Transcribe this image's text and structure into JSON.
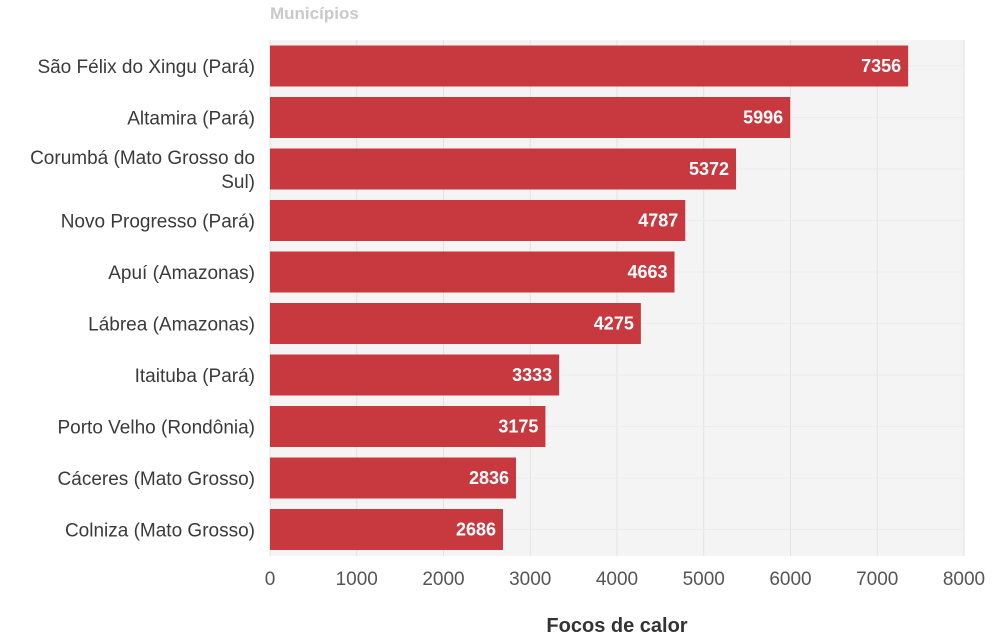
{
  "chart_data": {
    "type": "bar",
    "orientation": "horizontal",
    "title": "Municípios",
    "xlabel": "Focos de calor",
    "ylabel": "",
    "categories": [
      "São Félix do Xingu (Pará)",
      "Altamira (Pará)",
      "Corumbá (Mato Grosso do Sul)",
      "Novo Progresso (Pará)",
      "Apuí (Amazonas)",
      "Lábrea (Amazonas)",
      "Itaituba (Pará)",
      "Porto Velho (Rondônia)",
      "Cáceres (Mato Grosso)",
      "Colniza (Mato Grosso)"
    ],
    "values": [
      7356,
      5996,
      5372,
      4787,
      4663,
      4275,
      3333,
      3175,
      2836,
      2686
    ],
    "xlim": [
      0,
      8000
    ],
    "xticks": [
      0,
      1000,
      2000,
      3000,
      4000,
      5000,
      6000,
      7000,
      8000
    ],
    "grid": true,
    "bar_color": "#c8393f",
    "plot_background": "#f4f4f4",
    "data_labels": true
  }
}
